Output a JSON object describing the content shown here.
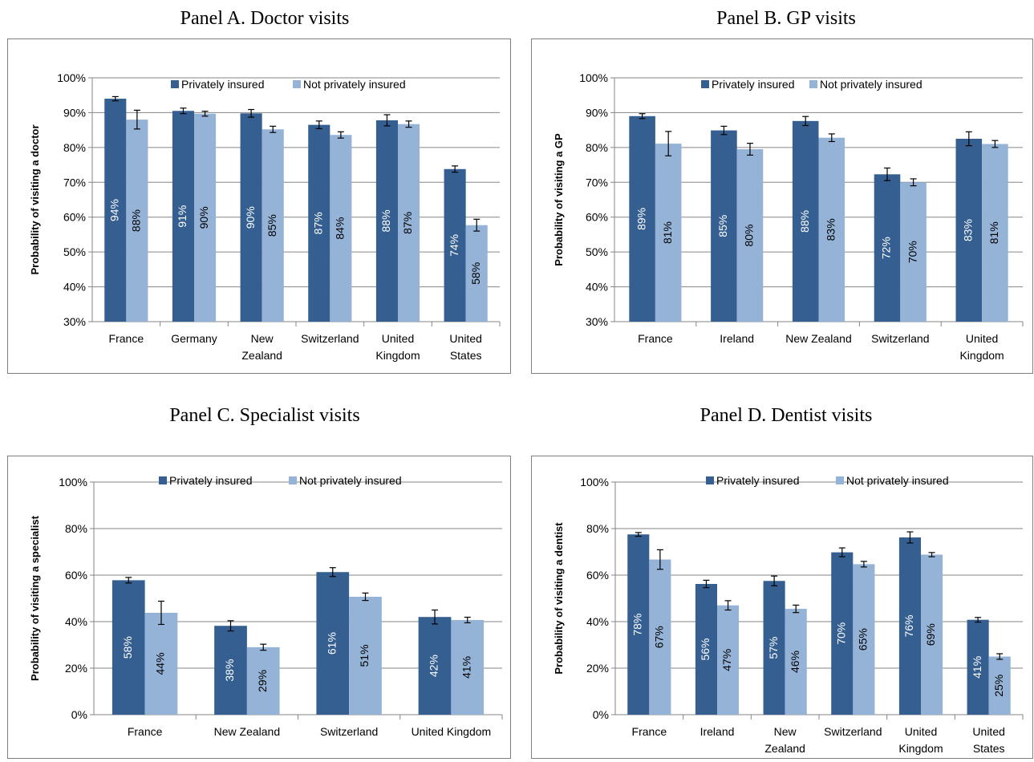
{
  "panel_titles": [
    "Panel A. Doctor visits",
    "Panel B. GP visits",
    "Panel C. Specialist visits",
    "Panel D. Dentist visits"
  ],
  "colors": {
    "privately_insured": "#355f91",
    "not_privately_insured": "#95b3d7",
    "grid": "#868686",
    "border": "#7f7f7f"
  },
  "chart_data": [
    {
      "type": "bar",
      "title": "Panel A. Doctor visits",
      "ylabel": "Probability of visiting a doctor",
      "ylim": [
        30,
        100
      ],
      "yticks": [
        30,
        40,
        50,
        60,
        70,
        80,
        90,
        100
      ],
      "ytick_labels": [
        "30%",
        "40%",
        "50%",
        "60%",
        "70%",
        "80%",
        "90%",
        "100%"
      ],
      "grid": true,
      "legend": "top",
      "categories": [
        [
          "France"
        ],
        [
          "Germany"
        ],
        [
          "New",
          "Zealand"
        ],
        [
          "Switzerland"
        ],
        [
          "United",
          "Kingdom"
        ],
        [
          "United",
          "States"
        ]
      ],
      "series": [
        {
          "name": "Privately insured",
          "values": [
            94,
            90.5,
            89.8,
            86.5,
            87.8,
            73.8
          ],
          "err": [
            0.6,
            0.8,
            1.1,
            1.1,
            1.6,
            0.9
          ],
          "labels": [
            "94%",
            "91%",
            "90%",
            "87%",
            "88%",
            "74%"
          ]
        },
        {
          "name": "Not privately insured",
          "values": [
            88,
            89.7,
            85.2,
            83.6,
            86.7,
            57.7
          ],
          "err": [
            2.7,
            0.7,
            0.9,
            0.9,
            0.9,
            1.7
          ],
          "labels": [
            "88%",
            "90%",
            "85%",
            "84%",
            "87%",
            "58%"
          ]
        }
      ]
    },
    {
      "type": "bar",
      "title": "Panel B. GP visits",
      "ylabel": "Probability of visiting a GP",
      "ylim": [
        30,
        100
      ],
      "yticks": [
        30,
        40,
        50,
        60,
        70,
        80,
        90,
        100
      ],
      "ytick_labels": [
        "30%",
        "40%",
        "50%",
        "60%",
        "70%",
        "80%",
        "90%",
        "100%"
      ],
      "grid": true,
      "legend": "top",
      "categories": [
        [
          "France"
        ],
        [
          "Ireland"
        ],
        [
          "New Zealand"
        ],
        [
          "Switzerland"
        ],
        [
          "United",
          "Kingdom"
        ]
      ],
      "series": [
        {
          "name": "Privately insured",
          "values": [
            89,
            84.9,
            87.6,
            72.3,
            82.5
          ],
          "err": [
            0.7,
            1.2,
            1.3,
            1.8,
            2
          ],
          "labels": [
            "89%",
            "85%",
            "88%",
            "72%",
            "83%"
          ]
        },
        {
          "name": "Not privately insured",
          "values": [
            81.1,
            79.5,
            82.8,
            70,
            81
          ],
          "err": [
            3.5,
            1.7,
            1.1,
            1,
            1
          ],
          "labels": [
            "81%",
            "80%",
            "83%",
            "70%",
            "81%"
          ]
        }
      ]
    },
    {
      "type": "bar",
      "title": "Panel C. Specialist visits",
      "ylabel": "Probability of visiting a specialist",
      "ylim": [
        0,
        100
      ],
      "yticks": [
        0,
        20,
        40,
        60,
        80,
        100
      ],
      "ytick_labels": [
        "0%",
        "20%",
        "40%",
        "60%",
        "80%",
        "100%"
      ],
      "grid": true,
      "legend": "top",
      "categories": [
        [
          "France"
        ],
        [
          "New Zealand"
        ],
        [
          "Switzerland"
        ],
        [
          "United Kingdom"
        ]
      ],
      "series": [
        {
          "name": "Privately insured",
          "values": [
            57.8,
            38.2,
            61.3,
            42
          ],
          "err": [
            1.2,
            2.2,
            1.9,
            3
          ],
          "labels": [
            "58%",
            "38%",
            "61%",
            "42%"
          ]
        },
        {
          "name": "Not privately insured",
          "values": [
            43.8,
            29,
            50.7,
            40.7
          ],
          "err": [
            5,
            1.3,
            1.6,
            1.2
          ],
          "labels": [
            "44%",
            "29%",
            "51%",
            "41%"
          ]
        }
      ]
    },
    {
      "type": "bar",
      "title": "Panel D. Dentist visits",
      "ylabel": "Probability of visiting a dentist",
      "ylim": [
        0,
        100
      ],
      "yticks": [
        0,
        20,
        40,
        60,
        80,
        100
      ],
      "ytick_labels": [
        "0%",
        "20%",
        "40%",
        "60%",
        "80%",
        "100%"
      ],
      "grid": true,
      "legend": "top",
      "categories": [
        [
          "France"
        ],
        [
          "Ireland"
        ],
        [
          "New",
          "Zealand"
        ],
        [
          "Switzerland"
        ],
        [
          "United",
          "Kingdom"
        ],
        [
          "United",
          "States"
        ]
      ],
      "series": [
        {
          "name": "Privately insured",
          "values": [
            77.5,
            56.2,
            57.5,
            69.8,
            76.2,
            40.8
          ],
          "err": [
            0.8,
            1.6,
            2.1,
            1.9,
            2.4,
            1
          ],
          "labels": [
            "78%",
            "56%",
            "57%",
            "70%",
            "76%",
            "41%"
          ]
        },
        {
          "name": "Not privately insured",
          "values": [
            66.7,
            47,
            45.5,
            64.7,
            68.8,
            25
          ],
          "err": [
            4.2,
            2,
            1.6,
            1.2,
            0.9,
            1.2
          ],
          "labels": [
            "67%",
            "47%",
            "46%",
            "65%",
            "69%",
            "25%"
          ]
        }
      ]
    }
  ]
}
